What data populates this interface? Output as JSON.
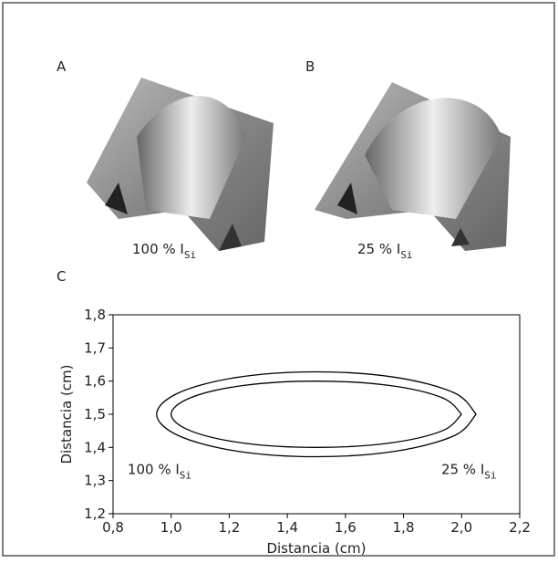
{
  "images": [
    {
      "label": "A",
      "caption": "100 % I",
      "caption_sub": "Si"
    },
    {
      "label": "B",
      "caption": "25 % I",
      "caption_sub": "Si"
    }
  ],
  "chart_data": {
    "type": "line",
    "panel_label": "C",
    "x_label": "Distancia (cm)",
    "y_label": "Distancia (cm)",
    "xlim": [
      0.8,
      2.2
    ],
    "ylim": [
      1.2,
      1.8
    ],
    "xticks": [
      {
        "value": 0.8,
        "label": "0,8"
      },
      {
        "value": 1.0,
        "label": "1,0"
      },
      {
        "value": 1.2,
        "label": "1,2"
      },
      {
        "value": 1.4,
        "label": "1,4"
      },
      {
        "value": 1.6,
        "label": "1,6"
      },
      {
        "value": 1.8,
        "label": "1,8"
      },
      {
        "value": 2.0,
        "label": "2,0"
      },
      {
        "value": 2.2,
        "label": "2,2"
      }
    ],
    "yticks": [
      {
        "value": 1.2,
        "label": "1,2"
      },
      {
        "value": 1.3,
        "label": "1,3"
      },
      {
        "value": 1.4,
        "label": "1,4"
      },
      {
        "value": 1.5,
        "label": "1,5"
      },
      {
        "value": 1.6,
        "label": "1,6"
      },
      {
        "value": 1.7,
        "label": "1,7"
      },
      {
        "value": 1.8,
        "label": "1,8"
      }
    ],
    "series": [
      {
        "color": "#000000",
        "x": [
          2.05,
          1.976,
          1.775,
          1.5,
          1.225,
          1.024,
          0.95,
          1.024,
          1.225,
          1.5,
          1.775,
          1.976,
          2.05
        ],
        "values": [
          1.5,
          1.564,
          1.611,
          1.628,
          1.611,
          1.564,
          1.5,
          1.436,
          1.389,
          1.372,
          1.389,
          1.436,
          1.5
        ]
      },
      {
        "color": "#000000",
        "x": [
          2.0,
          1.933,
          1.75,
          1.5,
          1.25,
          1.067,
          1.0,
          1.067,
          1.25,
          1.5,
          1.75,
          1.933,
          2.0
        ],
        "values": [
          1.5,
          1.55,
          1.587,
          1.6,
          1.587,
          1.55,
          1.5,
          1.45,
          1.413,
          1.4,
          1.413,
          1.45,
          1.5
        ]
      }
    ],
    "annotations": [
      {
        "text": "100 % I",
        "sub": "Si",
        "x": 0.85,
        "y": 1.32
      },
      {
        "text": "25 % I",
        "sub": "Si",
        "x": 2.12,
        "y": 1.32
      }
    ]
  }
}
